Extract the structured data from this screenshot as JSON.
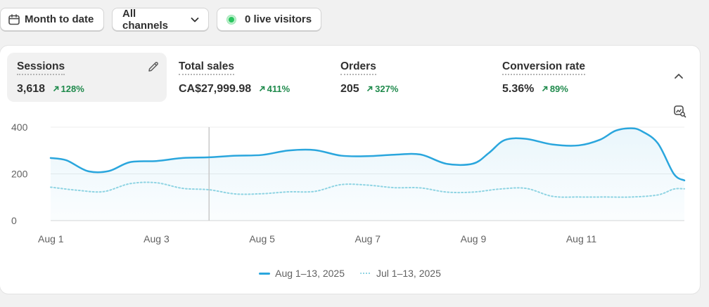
{
  "toolbar": {
    "date_range_label": "Month to date",
    "channels_label": "All channels",
    "live_visitors_label": "0 live visitors"
  },
  "metrics": [
    {
      "label": "Sessions",
      "value": "3,618",
      "delta": "128%"
    },
    {
      "label": "Total sales",
      "value": "CA$27,999.98",
      "delta": "411%"
    },
    {
      "label": "Orders",
      "value": "205",
      "delta": "327%"
    },
    {
      "label": "Conversion rate",
      "value": "5.36%",
      "delta": "89%"
    }
  ],
  "colors": {
    "current_series": "#2aa6dd",
    "previous_series": "#8fd4e3",
    "positive_delta": "#1f8a4c",
    "live_dot": "#29c55f"
  },
  "icons": [
    "calendar-icon",
    "chevron-down-icon",
    "live-dot-icon",
    "pencil-icon",
    "chevron-up-icon",
    "chart-zoom-icon",
    "arrow-up-right-icon"
  ],
  "chart_data": {
    "type": "line",
    "ylim": [
      0,
      400
    ],
    "yticks": [
      0,
      200,
      400
    ],
    "xlim": [
      1,
      13
    ],
    "xticks": [
      1,
      3,
      5,
      7,
      9,
      11
    ],
    "xtick_labels": [
      "Aug 1",
      "Aug 3",
      "Aug 5",
      "Aug 7",
      "Aug 9",
      "Aug 11"
    ],
    "grid": true,
    "legend_position": "bottom-center",
    "hover_x": 4,
    "series": [
      {
        "name": "Aug 1–13, 2025",
        "style": "solid",
        "x": [
          1,
          1.3,
          1.7,
          2.1,
          2.5,
          3,
          3.5,
          4,
          4.5,
          5,
          5.5,
          6,
          6.5,
          7,
          7.5,
          8,
          8.5,
          9,
          9.3,
          9.6,
          10,
          10.5,
          11,
          11.4,
          11.7,
          12,
          12.2,
          12.5,
          12.8,
          13
        ],
        "y": [
          268,
          258,
          212,
          212,
          250,
          255,
          268,
          271,
          278,
          281,
          300,
          302,
          278,
          276,
          282,
          283,
          243,
          244,
          290,
          345,
          350,
          326,
          322,
          346,
          385,
          395,
          382,
          330,
          200,
          172
        ]
      },
      {
        "name": "Jul 1–13, 2025",
        "style": "dotted",
        "x": [
          1,
          1.5,
          2,
          2.5,
          3,
          3.5,
          4,
          4.5,
          5,
          5.5,
          6,
          6.5,
          7,
          7.5,
          8,
          8.5,
          9,
          9.5,
          10,
          10.5,
          11,
          11.5,
          12,
          12.5,
          12.8,
          13
        ],
        "y": [
          143,
          130,
          124,
          158,
          162,
          138,
          132,
          114,
          115,
          123,
          125,
          154,
          152,
          141,
          140,
          122,
          122,
          135,
          138,
          104,
          101,
          101,
          101,
          110,
          135,
          136
        ]
      }
    ]
  }
}
